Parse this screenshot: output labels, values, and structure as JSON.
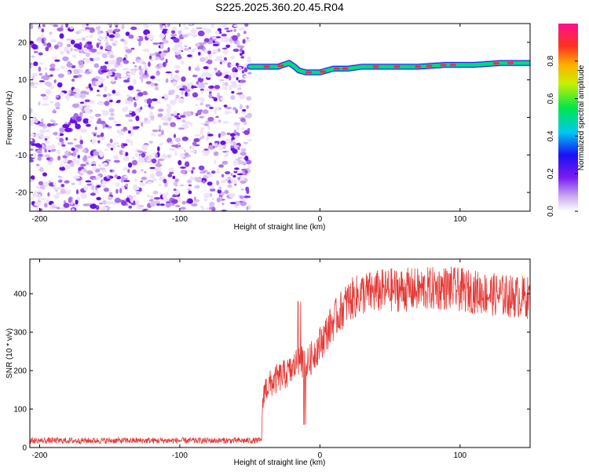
{
  "title": "S225.2025.360.20.45.R04",
  "chart_data": [
    {
      "type": "heatmap",
      "name": "spectrogram",
      "xlabel": "Height of straight line (km)",
      "ylabel": "Frequency (Hz)",
      "xlim": [
        -207,
        150
      ],
      "ylim": [
        -25,
        25
      ],
      "xticks": [
        -200,
        -100,
        0,
        100
      ],
      "yticks": [
        -20,
        -10,
        0,
        10,
        20
      ],
      "noise_region_x": [
        -207,
        -50
      ],
      "signal_line": {
        "x": [
          -50,
          -40,
          -30,
          -22,
          -18,
          -15,
          -10,
          -5,
          0,
          5,
          10,
          20,
          30,
          50,
          70,
          90,
          110,
          130,
          150
        ],
        "y": [
          13.5,
          13.5,
          13.5,
          14.5,
          13.5,
          12.5,
          12.0,
          12.0,
          12.0,
          12.5,
          13.0,
          13.0,
          13.5,
          13.5,
          13.5,
          14.0,
          14.0,
          14.5,
          14.5
        ]
      },
      "colorbar": {
        "label": "Normalized spectral amplitude",
        "range": [
          0,
          1
        ],
        "ticks": [
          "0.0",
          "0.2",
          "0.4",
          "0.6",
          "0.8"
        ]
      }
    },
    {
      "type": "line",
      "name": "snr",
      "xlabel": "Height of straight line (km)",
      "ylabel": "SNR (10 * v/v)",
      "xlim": [
        -207,
        150
      ],
      "ylim": [
        0,
        490
      ],
      "xticks": [
        -200,
        -100,
        0,
        100
      ],
      "yticks": [
        0,
        100,
        200,
        300,
        400
      ],
      "color": "#e53935",
      "trend": {
        "x": [
          -207,
          -42,
          -40,
          -30,
          -20,
          -15,
          -10,
          -5,
          0,
          10,
          20,
          30,
          50,
          70,
          90,
          110,
          130,
          150
        ],
        "y": [
          18,
          18,
          150,
          180,
          200,
          230,
          210,
          240,
          270,
          330,
          380,
          400,
          410,
          410,
          415,
          405,
          395,
          390
        ]
      },
      "noise_amplitude": 25
    }
  ]
}
